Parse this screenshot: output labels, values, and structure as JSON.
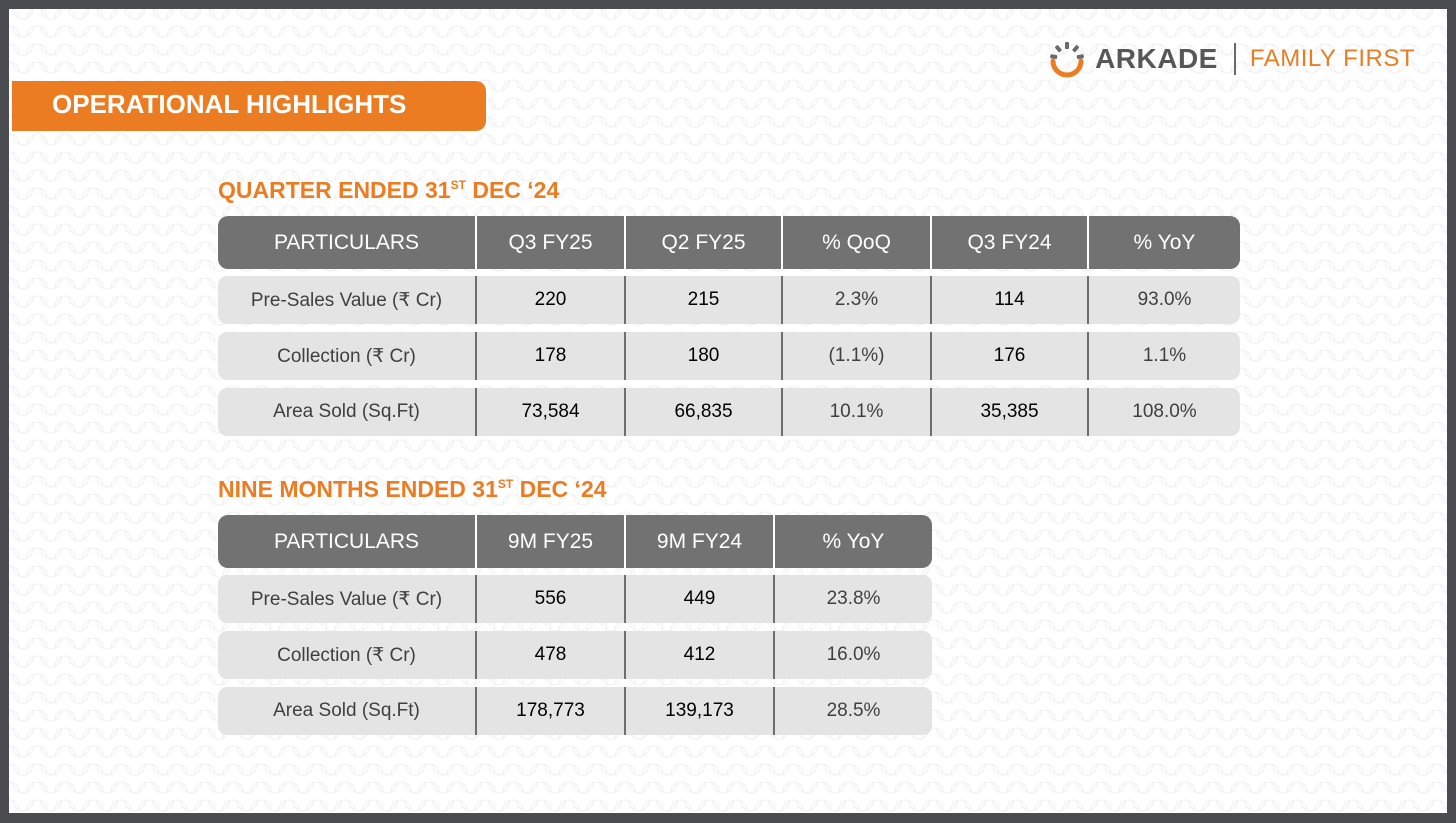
{
  "logo": {
    "brand": "ARKADE",
    "tagline": "FAMILY FIRST",
    "colors": {
      "ring": "#ec7c22",
      "ring_dark": "#6a6a6a"
    }
  },
  "banner": {
    "title": "OPERATIONAL HIGHLIGHTS",
    "color": "#ec7c22"
  },
  "quarter": {
    "title_prefix": "QUARTER ENDED 31",
    "title_sup": "ST",
    "title_suffix": " DEC ‘24",
    "headers": [
      "PARTICULARS",
      "Q3 FY25",
      "Q2 FY25",
      "% QoQ",
      "Q3 FY24",
      "% YoY"
    ],
    "rows": [
      [
        "Pre-Sales Value (₹ Cr)",
        "220",
        "215",
        "2.3%",
        "114",
        "93.0%"
      ],
      [
        "Collection (₹  Cr)",
        "178",
        "180",
        "(1.1%)",
        "176",
        "1.1%"
      ],
      [
        "Area Sold (Sq.Ft)",
        "73,584",
        "66,835",
        "10.1%",
        "35,385",
        "108.0%"
      ]
    ]
  },
  "nine_months": {
    "title_prefix": "NINE MONTHS ENDED 31",
    "title_sup": "ST",
    "title_suffix": " DEC ‘24",
    "headers": [
      "PARTICULARS",
      "9M FY25",
      "9M FY24",
      "% YoY"
    ],
    "rows": [
      [
        "Pre-Sales Value (₹  Cr)",
        "556",
        "449",
        "23.8%"
      ],
      [
        "Collection (₹  Cr)",
        "478",
        "412",
        "16.0%"
      ],
      [
        "Area Sold (Sq.Ft)",
        "178,773",
        "139,173",
        "28.5%"
      ]
    ]
  }
}
